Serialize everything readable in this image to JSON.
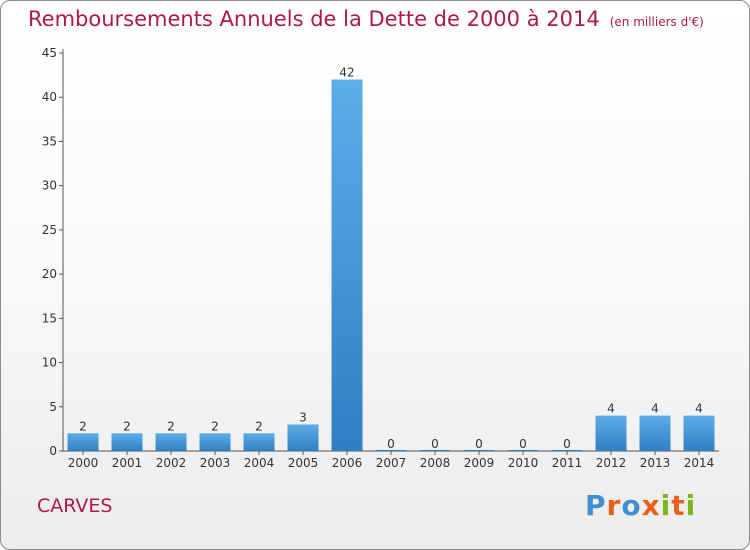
{
  "title": "Remboursements Annuels de la Dette de 2000 à 2014",
  "unit_label": "(en milliers d'€)",
  "place": "CARVES",
  "logo_text": "Proxiti",
  "colors": {
    "title": "#b0174e",
    "bar_top": "#5baee8",
    "bar_bottom": "#2f7fc2",
    "logo_letters": [
      "#3f8fd1",
      "#e8601c",
      "#3f8fd1",
      "#e8601c",
      "#7ab51d",
      "#e8601c",
      "#7ab51d"
    ]
  },
  "chart_data": {
    "type": "bar",
    "title": "Remboursements Annuels de la Dette de 2000 à 2014",
    "categories": [
      "2000",
      "2001",
      "2002",
      "2003",
      "2004",
      "2005",
      "2006",
      "2007",
      "2008",
      "2009",
      "2010",
      "2011",
      "2012",
      "2013",
      "2014"
    ],
    "values": [
      2,
      2,
      2,
      2,
      2,
      3,
      42,
      0,
      0,
      0,
      0,
      0,
      4,
      4,
      4
    ],
    "value_labels": [
      "2",
      "2",
      "2",
      "2",
      "2",
      "3",
      "42",
      "0",
      "0",
      "0",
      "0",
      "0",
      "4",
      "4",
      "4"
    ],
    "ylim": [
      0,
      45
    ],
    "yticks": [
      0,
      5,
      10,
      15,
      20,
      25,
      30,
      35,
      40,
      45
    ],
    "xlabel": "",
    "ylabel": "",
    "grid": false,
    "legend": "none"
  }
}
